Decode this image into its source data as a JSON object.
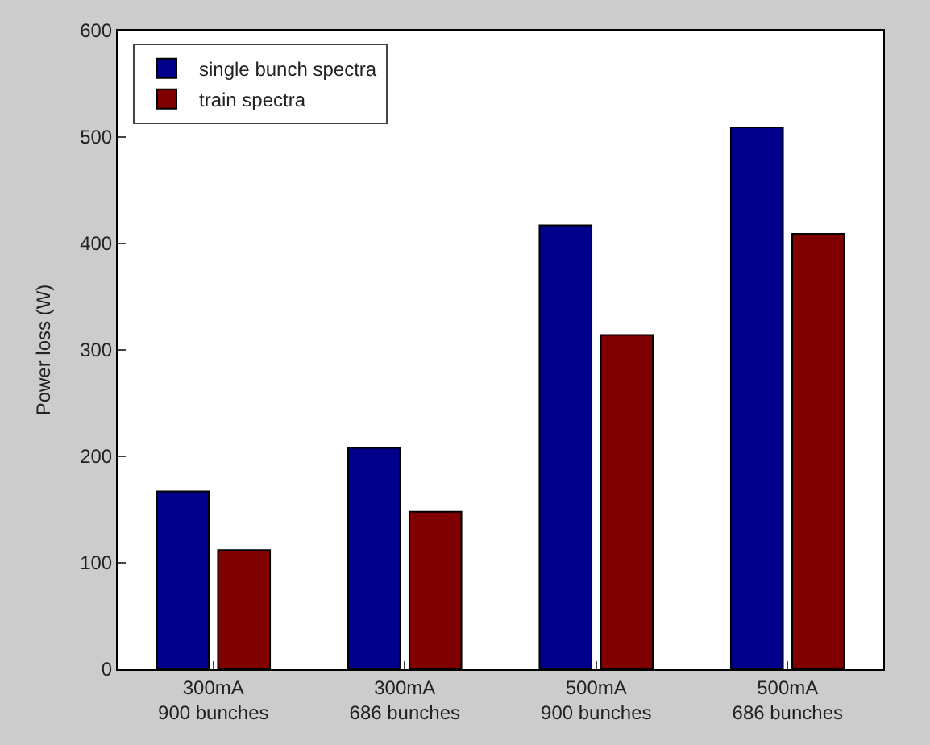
{
  "chart_data": {
    "type": "bar",
    "ylabel": "Power loss (W)",
    "categories": [
      "300mA\n900 bunches",
      "300mA\n686 bunches",
      "500mA\n900 bunches",
      "500mA\n686 bunches"
    ],
    "series": [
      {
        "name": "single bunch spectra",
        "color": "#00008b",
        "values": [
          167,
          208,
          417,
          509
        ]
      },
      {
        "name": "train spectra",
        "color": "#800000",
        "values": [
          112,
          148,
          314,
          409
        ]
      }
    ],
    "ylim": [
      0,
      600
    ],
    "yticks": [
      0,
      100,
      200,
      300,
      400,
      500,
      600
    ],
    "legend": "top left"
  }
}
